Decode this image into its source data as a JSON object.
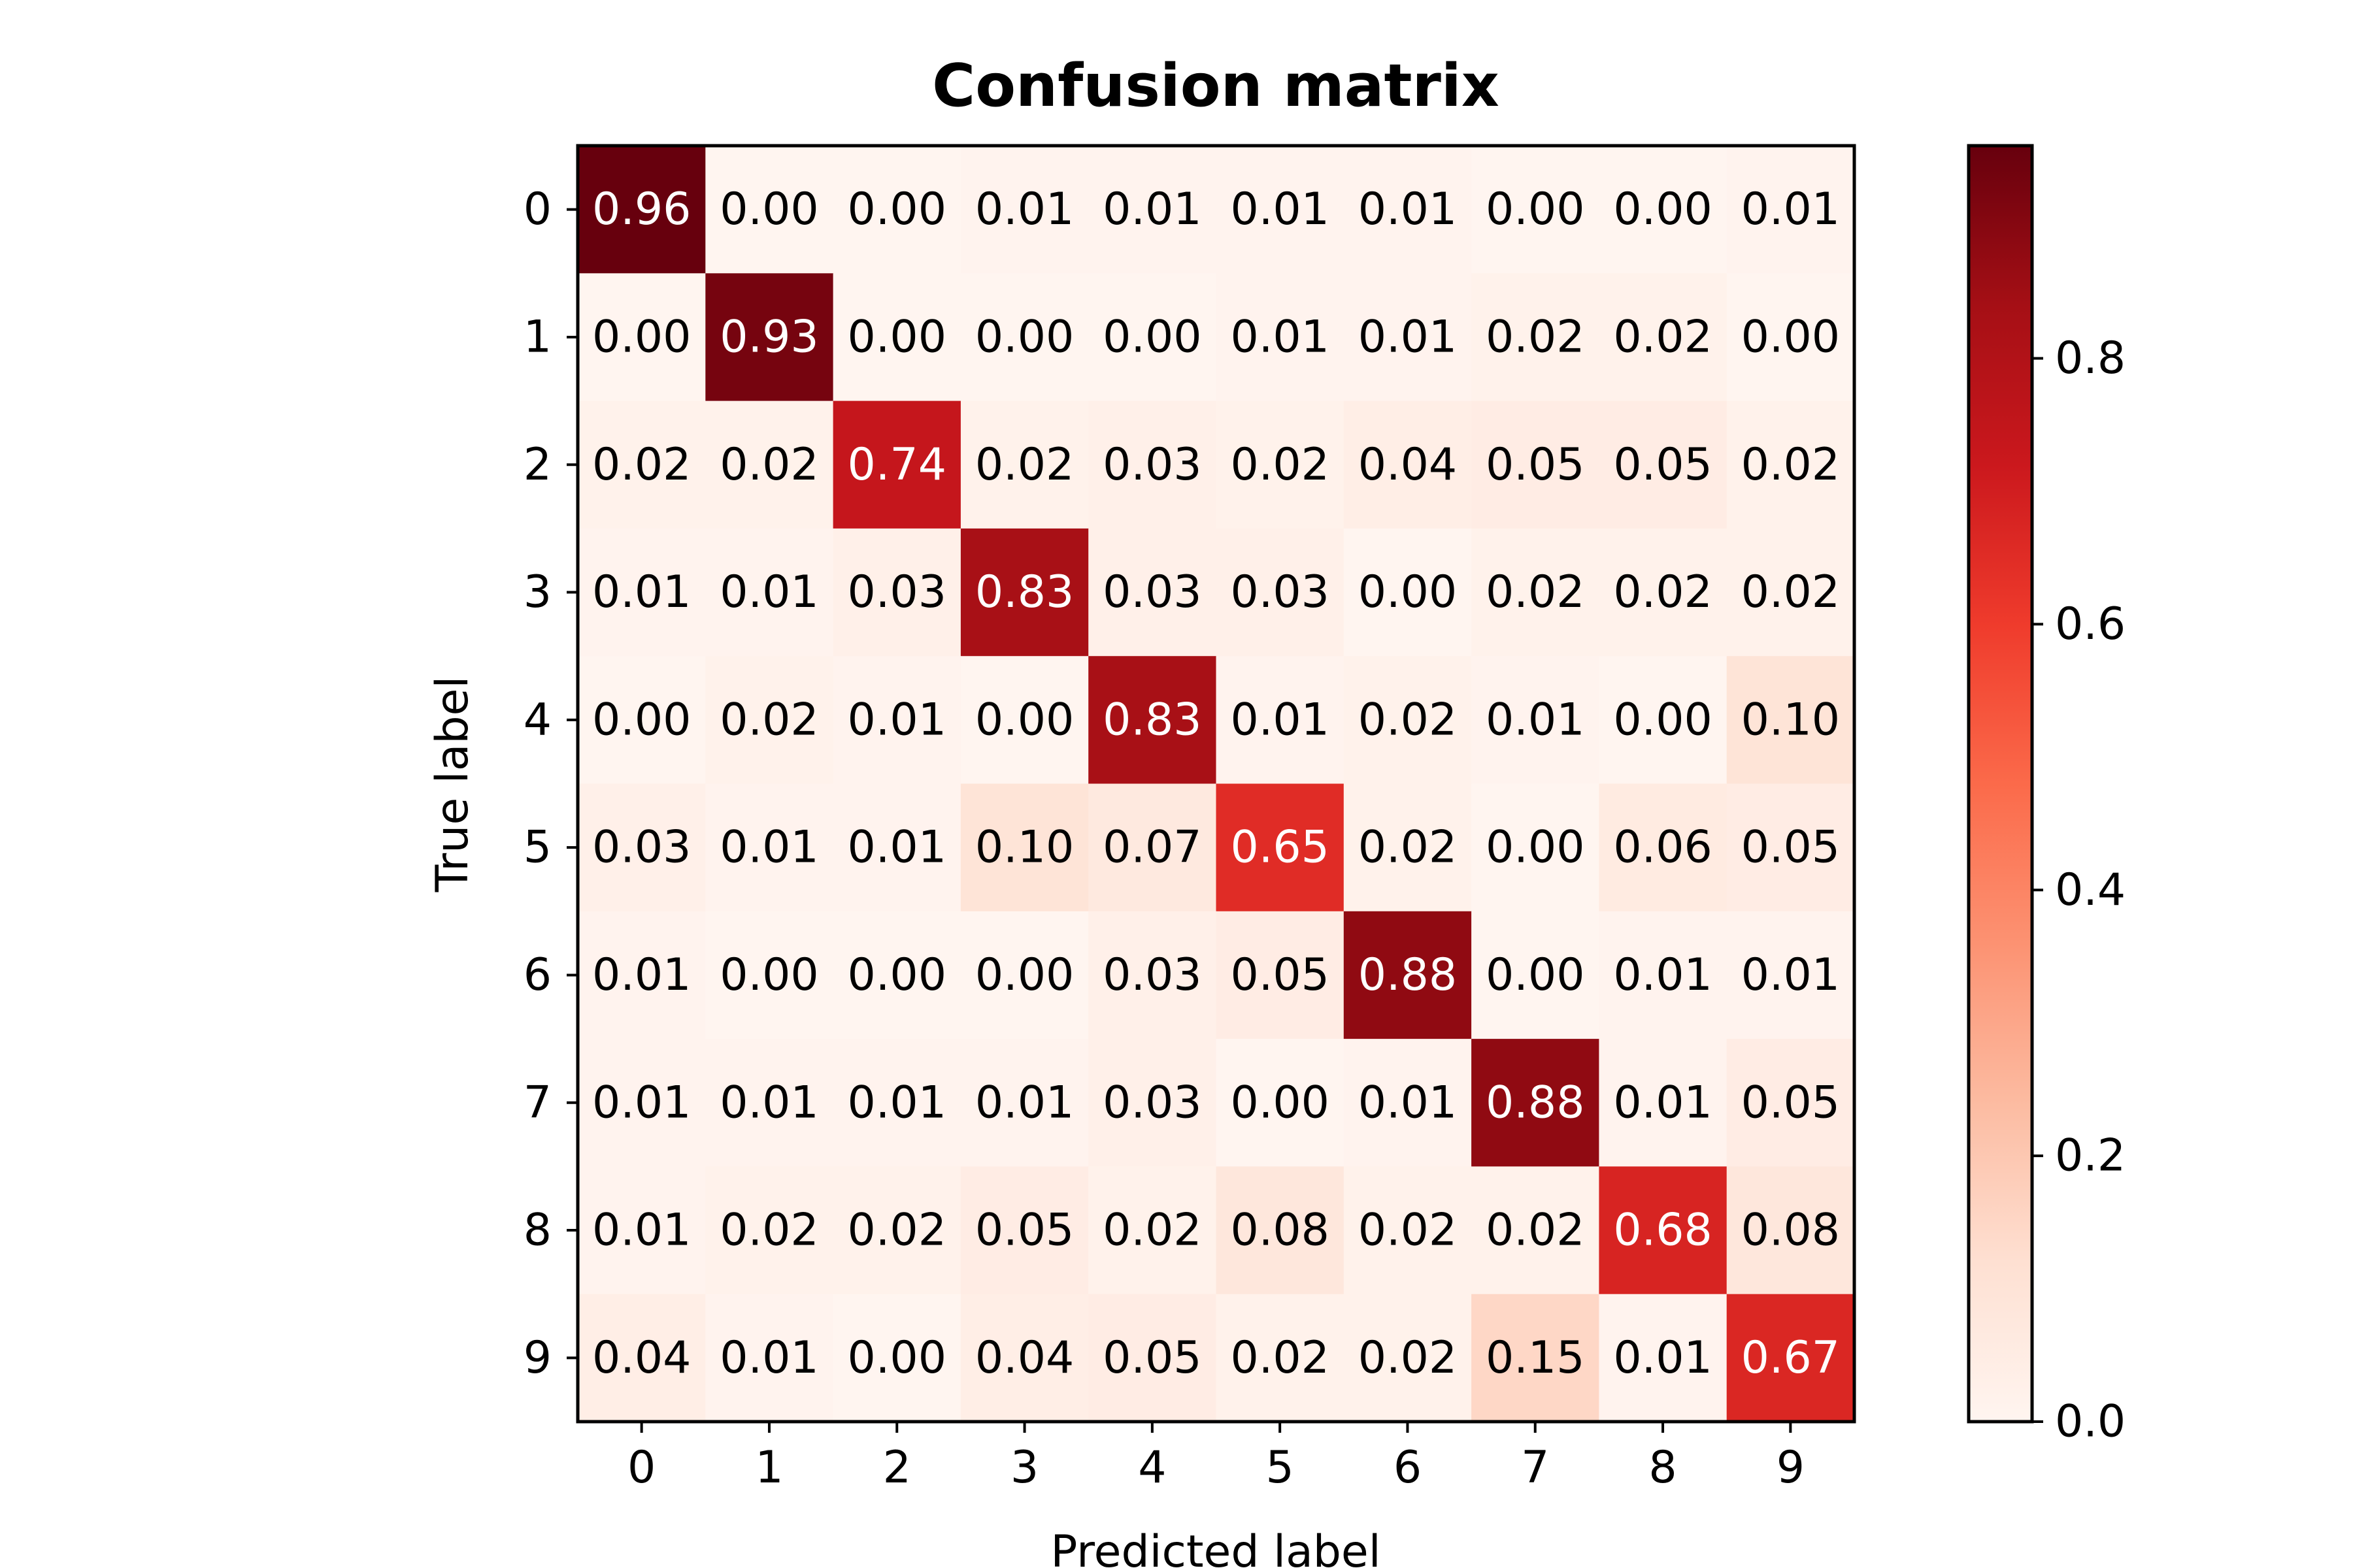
{
  "chart_data": {
    "type": "heatmap",
    "title": "Confusion matrix",
    "xlabel": "Predicted label",
    "ylabel": "True label",
    "x_categories": [
      "0",
      "1",
      "2",
      "3",
      "4",
      "5",
      "6",
      "7",
      "8",
      "9"
    ],
    "y_categories": [
      "0",
      "1",
      "2",
      "3",
      "4",
      "5",
      "6",
      "7",
      "8",
      "9"
    ],
    "values": [
      [
        "0.96",
        "0.00",
        "0.00",
        "0.01",
        "0.01",
        "0.01",
        "0.01",
        "0.00",
        "0.00",
        "0.01"
      ],
      [
        "0.00",
        "0.93",
        "0.00",
        "0.00",
        "0.00",
        "0.01",
        "0.01",
        "0.02",
        "0.02",
        "0.00"
      ],
      [
        "0.02",
        "0.02",
        "0.74",
        "0.02",
        "0.03",
        "0.02",
        "0.04",
        "0.05",
        "0.05",
        "0.02"
      ],
      [
        "0.01",
        "0.01",
        "0.03",
        "0.83",
        "0.03",
        "0.03",
        "0.00",
        "0.02",
        "0.02",
        "0.02"
      ],
      [
        "0.00",
        "0.02",
        "0.01",
        "0.00",
        "0.83",
        "0.01",
        "0.02",
        "0.01",
        "0.00",
        "0.10"
      ],
      [
        "0.03",
        "0.01",
        "0.01",
        "0.10",
        "0.07",
        "0.65",
        "0.02",
        "0.00",
        "0.06",
        "0.05"
      ],
      [
        "0.01",
        "0.00",
        "0.00",
        "0.00",
        "0.03",
        "0.05",
        "0.88",
        "0.00",
        "0.01",
        "0.01"
      ],
      [
        "0.01",
        "0.01",
        "0.01",
        "0.01",
        "0.03",
        "0.00",
        "0.01",
        "0.88",
        "0.01",
        "0.05"
      ],
      [
        "0.01",
        "0.02",
        "0.02",
        "0.05",
        "0.02",
        "0.08",
        "0.02",
        "0.02",
        "0.68",
        "0.08"
      ],
      [
        "0.04",
        "0.01",
        "0.00",
        "0.04",
        "0.05",
        "0.02",
        "0.02",
        "0.15",
        "0.01",
        "0.67"
      ]
    ],
    "colorscale": "Reds",
    "colorbar": {
      "min": 0.0,
      "max": 0.96,
      "ticks": [
        "0.0",
        "0.2",
        "0.4",
        "0.6",
        "0.8"
      ]
    },
    "grid": false,
    "legend": "colorbar-right"
  }
}
